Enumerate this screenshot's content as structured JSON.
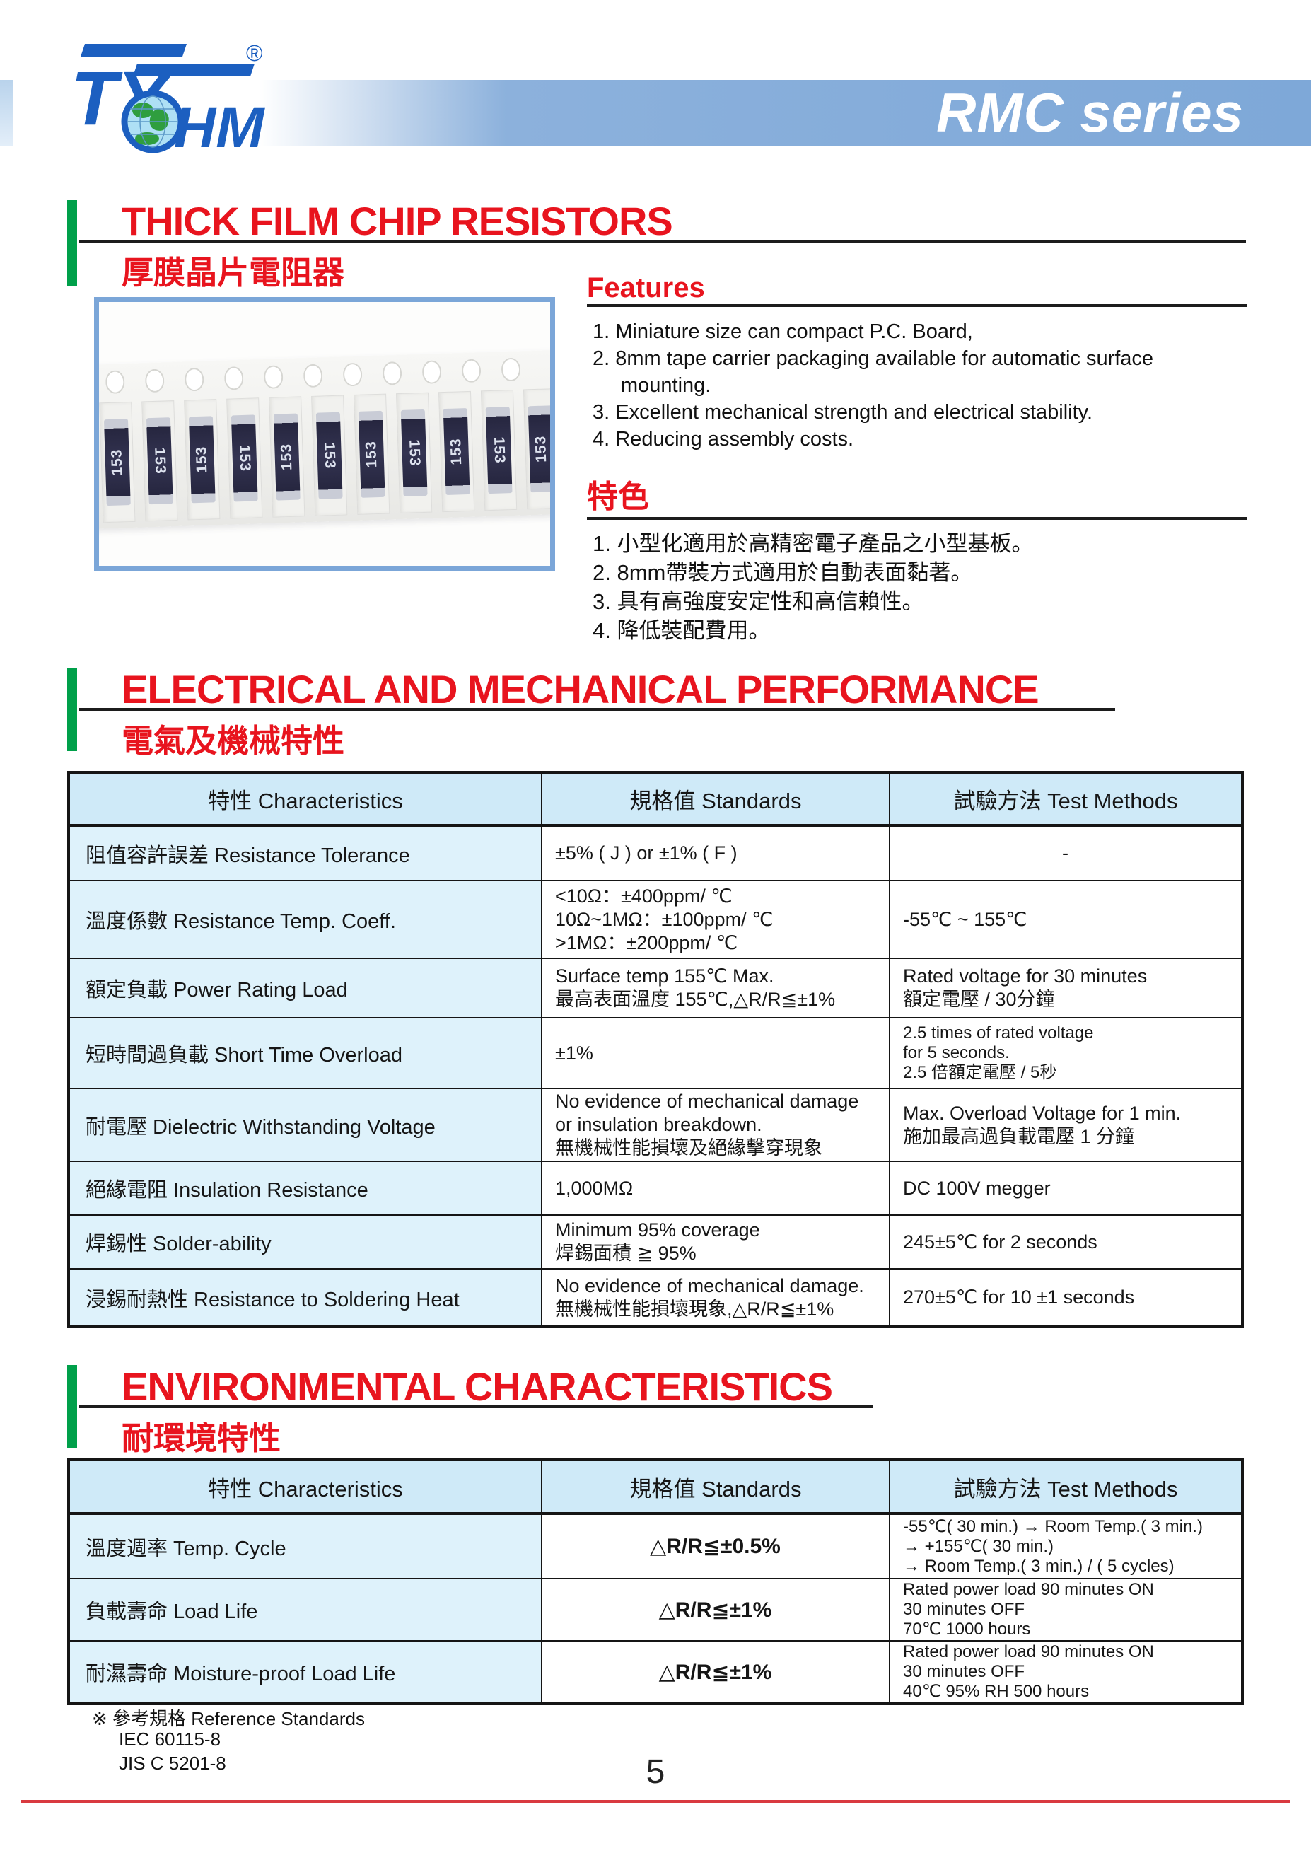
{
  "header": {
    "series_title": "RMC series",
    "logo": {
      "name": "TY-OHM",
      "ty": "TY",
      "hm": "HM",
      "registered": "®"
    }
  },
  "title": {
    "en": "THICK FILM CHIP RESISTORS",
    "zh": "厚膜晶片電阻器"
  },
  "features": {
    "heading": "Features",
    "items": [
      [
        "1. Miniature size can compact P.C. Board,"
      ],
      [
        "2. 8mm tape carrier packaging available for automatic surface",
        "mounting."
      ],
      [
        "3. Excellent mechanical strength and electrical stability."
      ],
      [
        "4. Reducing assembly costs."
      ]
    ]
  },
  "tese": {
    "heading": "特色",
    "items": [
      [
        "1. 小型化適用於高精密電子產品之小型基板。"
      ],
      [
        "2. 8mm帶裝方式適用於自動表面黏著。"
      ],
      [
        "3. 具有高強度安定性和高信賴性。"
      ],
      [
        "4. 降低裝配費用。"
      ]
    ]
  },
  "sections": {
    "electrical": {
      "en": "ELECTRICAL AND MECHANICAL PERFORMANCE",
      "zh": "電氣及機械特性"
    },
    "environmental": {
      "en": "ENVIRONMENTAL CHARACTERISTICS",
      "zh": "耐環境特性"
    }
  },
  "photo": {
    "chip_marking": "153",
    "chip_count": 11,
    "hole_count": 11
  },
  "electrical_table": {
    "columns": [
      "特性  Characteristics",
      "規格值  Standards",
      "試驗方法  Test Methods"
    ],
    "rows": [
      {
        "characteristic": "阻值容許誤差  Resistance Tolerance",
        "standards": [
          "±5% ( J ) or ±1% ( F )"
        ],
        "methods": [
          "-"
        ],
        "methods_center": true
      },
      {
        "characteristic": "溫度係數  Resistance Temp. Coeff.",
        "standards": [
          "<10Ω：±400ppm/ ℃",
          "10Ω~1MΩ：±100ppm/ ℃",
          ">1MΩ：±200ppm/ ℃"
        ],
        "methods": [
          "-55℃ ~ 155℃"
        ]
      },
      {
        "characteristic": "額定負載 Power Rating Load",
        "standards": [
          "Surface temp 155℃ Max.",
          "最高表面溫度 155℃,△R/R≦±1%"
        ],
        "methods": [
          "Rated voltage for 30 minutes",
          "額定電壓 / 30分鐘"
        ]
      },
      {
        "characteristic": "短時間過負載  Short Time Overload",
        "standards": [
          "±1%"
        ],
        "methods": [
          "2.5 times of rated voltage",
          "for 5 seconds.",
          "2.5 倍額定電壓 / 5秒"
        ],
        "methods_small": true
      },
      {
        "characteristic": "耐電壓 Dielectric Withstanding Voltage",
        "standards": [
          "No evidence of mechanical damage",
          "or insulation breakdown.",
          "無機械性能損壞及絕緣擊穿現象"
        ],
        "methods": [
          "Max. Overload Voltage for 1 min.",
          "施加最高過負載電壓 1 分鐘"
        ]
      },
      {
        "characteristic": "絕緣電阻 Insulation Resistance",
        "standards": [
          "1,000MΩ"
        ],
        "methods": [
          "DC 100V megger"
        ]
      },
      {
        "characteristic": "焊錫性 Solder-ability",
        "standards": [
          "Minimum 95% coverage",
          "焊錫面積 ≧ 95%"
        ],
        "methods": [
          "245±5℃ for 2 seconds"
        ]
      },
      {
        "characteristic": "浸錫耐熱性 Resistance to Soldering Heat",
        "standards": [
          "No evidence of mechanical damage.",
          "無機械性能損壞現象,△R/R≦±1%"
        ],
        "methods": [
          "270±5℃ for 10 ±1 seconds"
        ]
      }
    ]
  },
  "environmental_table": {
    "columns": [
      "特性  Characteristics",
      "規格值  Standards",
      "試驗方法  Test Methods"
    ],
    "rows": [
      {
        "characteristic": "溫度週率 Temp. Cycle",
        "standards": [
          "△R/R≦±0.5%"
        ],
        "standards_center": true,
        "standards_bold": true,
        "methods": [
          "-55℃( 30 min.) → Room Temp.( 3 min.)",
          "→ +155℃( 30 min.)",
          "→ Room Temp.( 3 min.) / ( 5 cycles)"
        ],
        "methods_small": true
      },
      {
        "characteristic": "負載壽命 Load Life",
        "standards": [
          "△R/R≦±1%"
        ],
        "standards_center": true,
        "standards_bold": true,
        "methods": [
          "Rated power load 90 minutes ON",
          "30 minutes OFF",
          "70℃ 1000 hours"
        ],
        "methods_small": true
      },
      {
        "characteristic": "耐濕壽命 Moisture-proof Load Life",
        "standards": [
          "△R/R≦±1%"
        ],
        "standards_center": true,
        "standards_bold": true,
        "methods": [
          "Rated power load 90 minutes ON",
          "30 minutes OFF",
          "40℃ 95% RH 500 hours"
        ],
        "methods_small": true
      }
    ]
  },
  "reference": {
    "note": "※ 參考規格 Reference Standards",
    "items": [
      "IEC 60115-8",
      "JIS C 5201-8"
    ]
  },
  "page": {
    "number": "5"
  },
  "colors": {
    "accent_red": "#e8141e",
    "accent_green": "#00a04a",
    "band_blue": "#7ea8d8",
    "logo_blue": "#1c5fc0",
    "table_header_bg": "#cfeaf8",
    "table_col1_bg": "#def2fb",
    "footer_line_red": "#d93a40"
  }
}
